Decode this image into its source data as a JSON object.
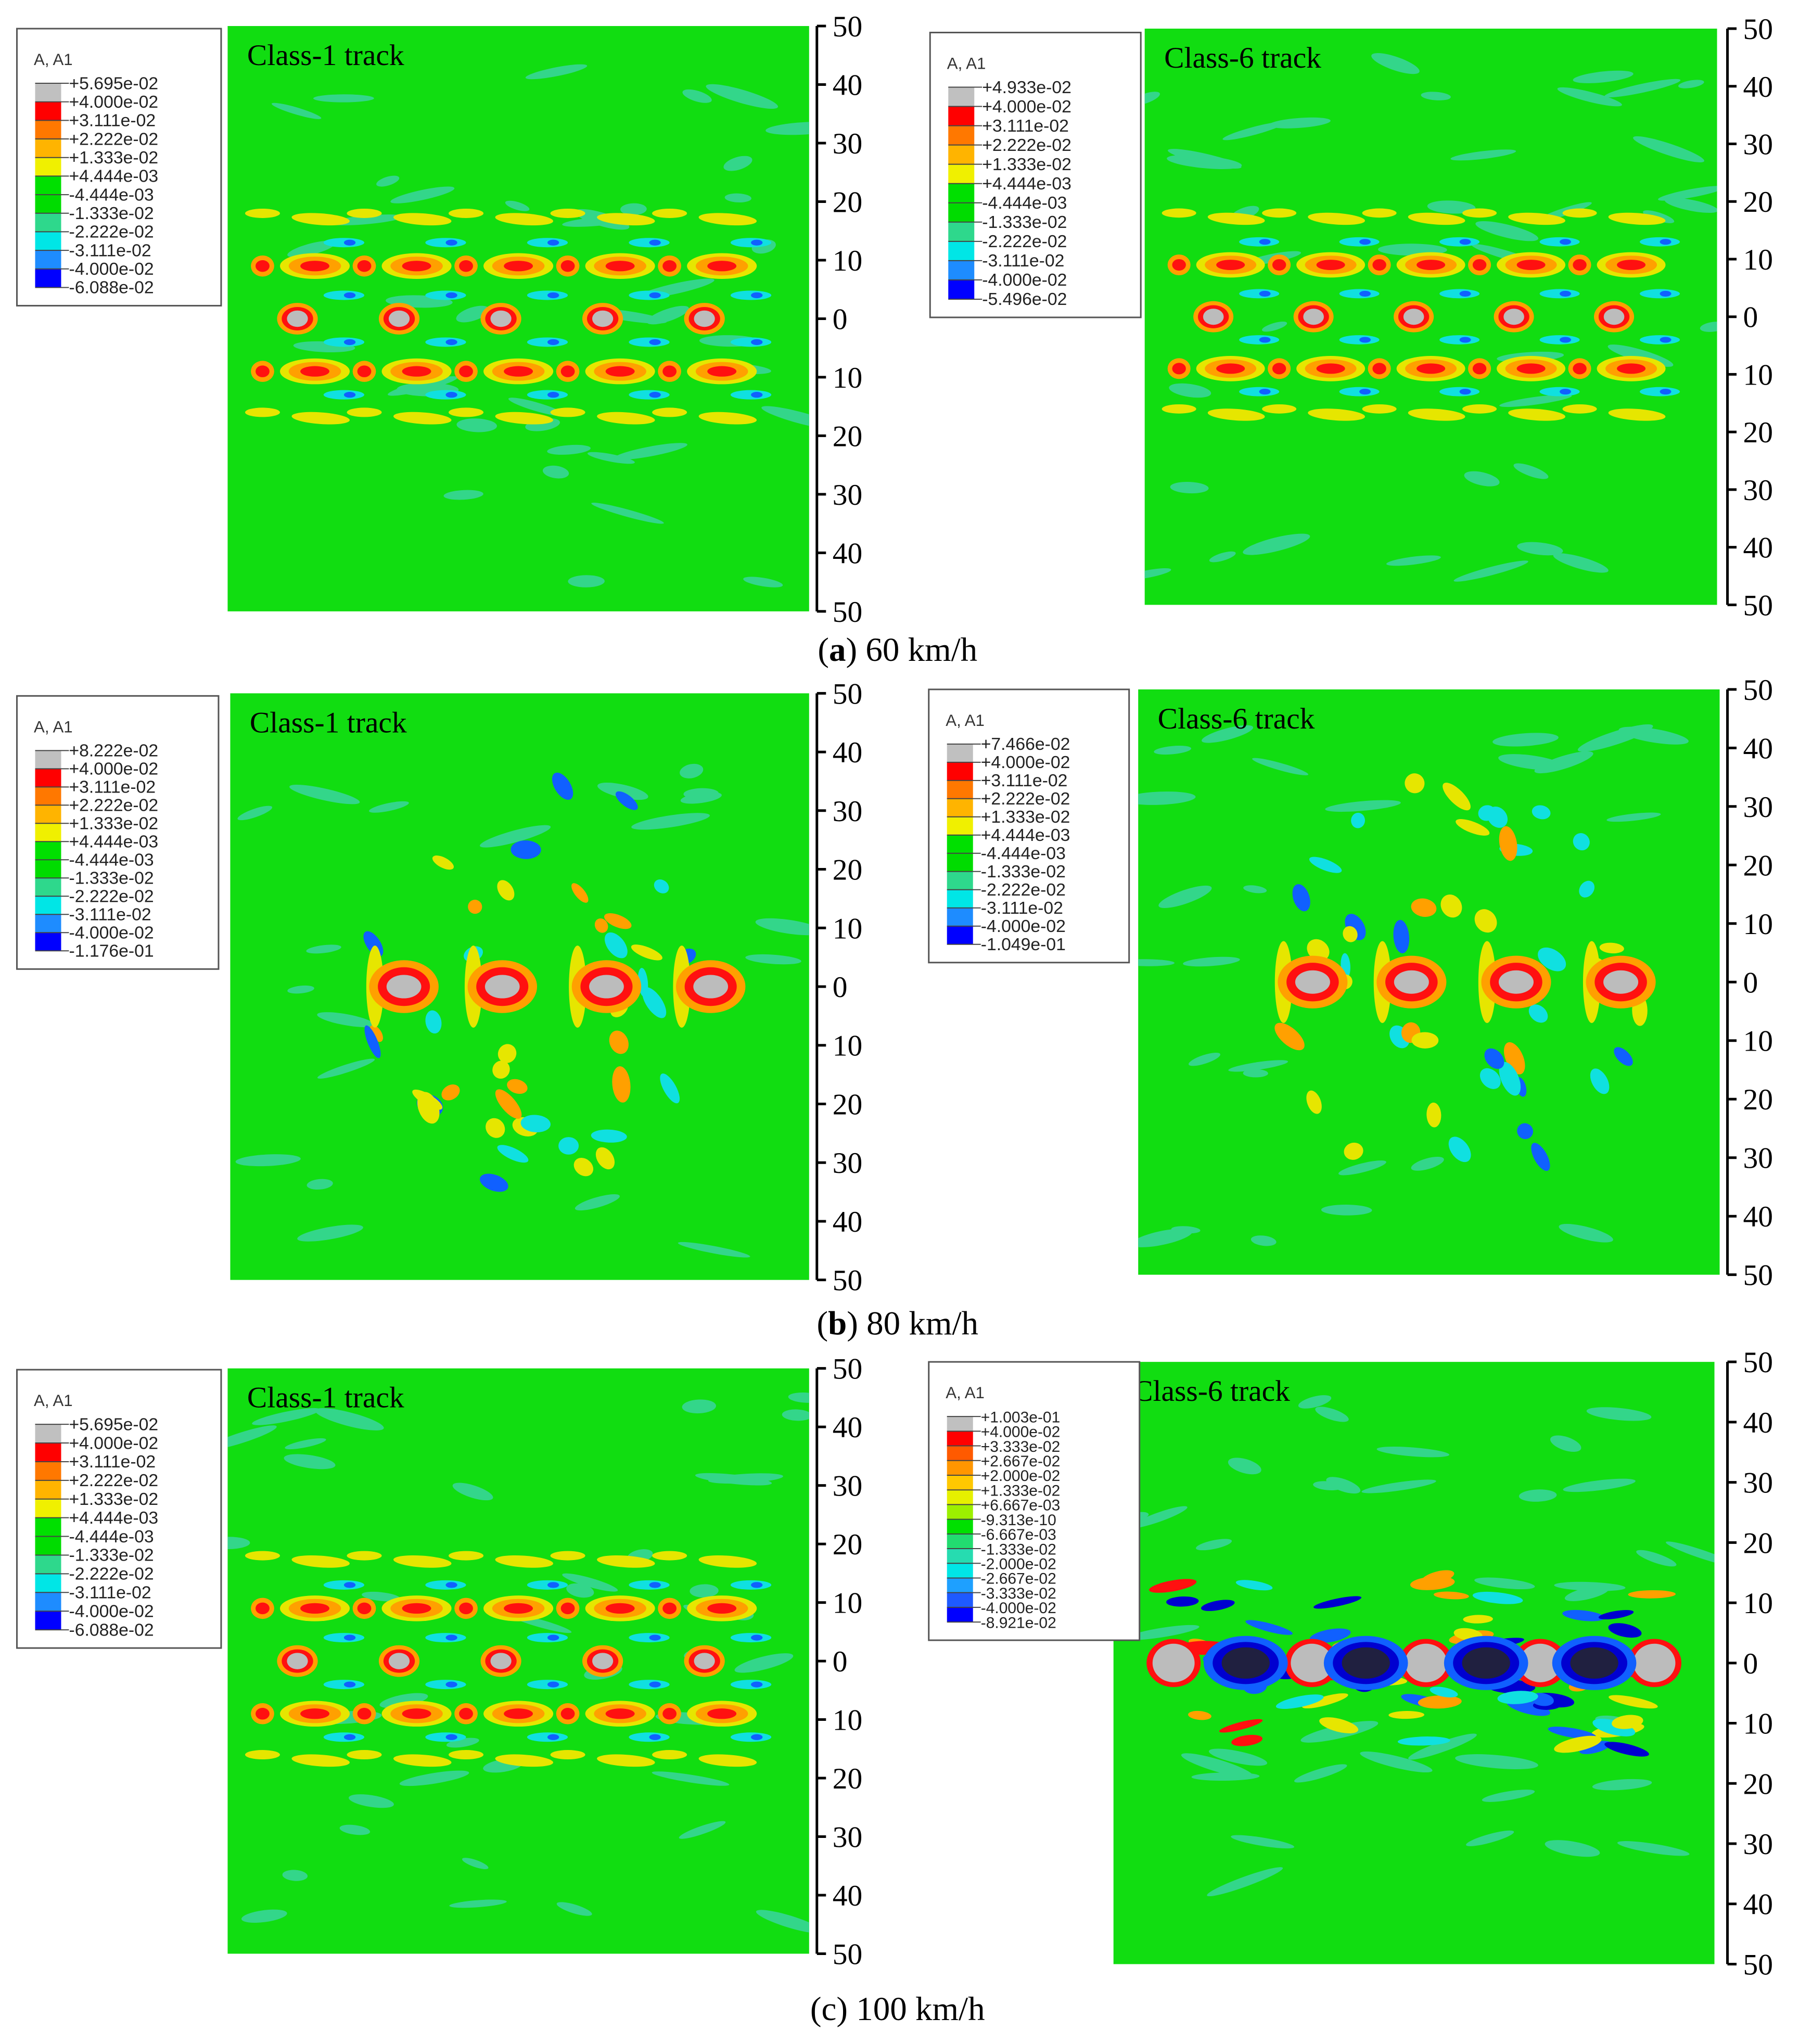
{
  "panels": [
    {
      "title": "Class-1 track",
      "legend": {
        "title": "A, A1",
        "labels": [
          "+5.695e-02",
          "+4.000e-02",
          "+3.111e-02",
          "+2.222e-02",
          "+1.333e-02",
          "+4.444e-03",
          "-4.444e-03",
          "-1.333e-02",
          "-2.222e-02",
          "-3.111e-02",
          "-4.000e-02",
          "-6.088e-02"
        ]
      },
      "ticks": [
        50,
        40,
        30,
        20,
        10,
        0,
        10,
        20,
        30,
        40,
        50
      ]
    },
    {
      "title": "Class-6 track",
      "legend": {
        "title": "A, A1",
        "labels": [
          "+4.933e-02",
          "+4.000e-02",
          "+3.111e-02",
          "+2.222e-02",
          "+1.333e-02",
          "+4.444e-03",
          "-4.444e-03",
          "-1.333e-02",
          "-2.222e-02",
          "-3.111e-02",
          "-4.000e-02",
          "-5.496e-02"
        ]
      },
      "ticks": [
        50,
        40,
        30,
        20,
        10,
        0,
        10,
        20,
        30,
        40,
        50
      ]
    },
    {
      "title": "Class-1 track",
      "legend": {
        "title": "A, A1",
        "labels": [
          "+8.222e-02",
          "+4.000e-02",
          "+3.111e-02",
          "+2.222e-02",
          "+1.333e-02",
          "+4.444e-03",
          "-4.444e-03",
          "-1.333e-02",
          "-2.222e-02",
          "-3.111e-02",
          "-4.000e-02",
          "-1.176e-01"
        ]
      },
      "ticks": [
        50,
        40,
        30,
        20,
        10,
        0,
        10,
        20,
        30,
        40,
        50
      ]
    },
    {
      "title": "Class-6 track",
      "legend": {
        "title": "A, A1",
        "labels": [
          "+7.466e-02",
          "+4.000e-02",
          "+3.111e-02",
          "+2.222e-02",
          "+1.333e-02",
          "+4.444e-03",
          "-4.444e-03",
          "-1.333e-02",
          "-2.222e-02",
          "-3.111e-02",
          "-4.000e-02",
          "-1.049e-01"
        ]
      },
      "ticks": [
        50,
        40,
        30,
        20,
        10,
        0,
        10,
        20,
        30,
        40,
        50
      ]
    },
    {
      "title": "Class-1 track",
      "legend": {
        "title": "A, A1",
        "labels": [
          "+5.695e-02",
          "+4.000e-02",
          "+3.111e-02",
          "+2.222e-02",
          "+1.333e-02",
          "+4.444e-03",
          "-4.444e-03",
          "-1.333e-02",
          "-2.222e-02",
          "-3.111e-02",
          "-4.000e-02",
          "-6.088e-02"
        ]
      },
      "ticks": [
        50,
        40,
        30,
        20,
        10,
        0,
        10,
        20,
        30,
        40,
        50
      ]
    },
    {
      "title": "Class-6 track",
      "legend": {
        "title": "A, A1",
        "labels": [
          "+1.003e-01",
          "+4.000e-02",
          "+3.333e-02",
          "+2.667e-02",
          "+2.000e-02",
          "+1.333e-02",
          "+6.667e-03",
          "-9.313e-10",
          "-6.667e-03",
          "-1.333e-02",
          "-2.000e-02",
          "-2.667e-02",
          "-3.333e-02",
          "-4.000e-02",
          "-8.921e-02"
        ]
      },
      "ticks": [
        50,
        40,
        30,
        20,
        10,
        0,
        10,
        20,
        30,
        40,
        50
      ]
    }
  ],
  "captions": [
    {
      "parts": [
        "(",
        "a",
        ") 60 km/h"
      ]
    },
    {
      "parts": [
        "(",
        "b",
        ") 80 km/h"
      ]
    },
    {
      "parts": [
        "(",
        "c",
        ") 100 km/h"
      ]
    }
  ]
}
